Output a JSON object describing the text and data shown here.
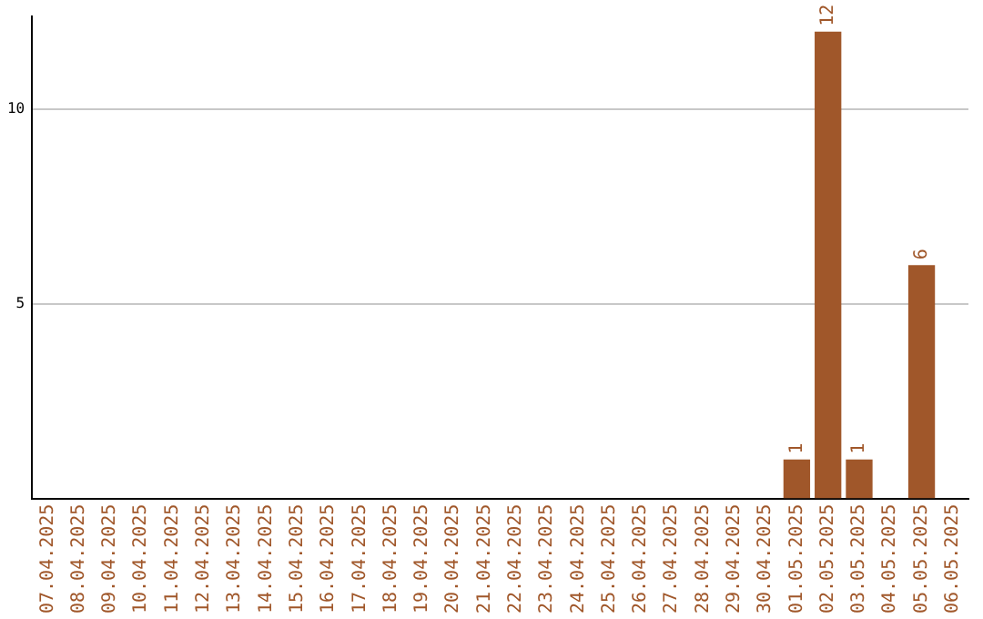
{
  "chart_data": {
    "type": "bar",
    "categories": [
      "07.04.2025",
      "08.04.2025",
      "09.04.2025",
      "10.04.2025",
      "11.04.2025",
      "12.04.2025",
      "13.04.2025",
      "14.04.2025",
      "15.04.2025",
      "16.04.2025",
      "17.04.2025",
      "18.04.2025",
      "19.04.2025",
      "20.04.2025",
      "21.04.2025",
      "22.04.2025",
      "23.04.2025",
      "24.04.2025",
      "25.04.2025",
      "26.04.2025",
      "27.04.2025",
      "28.04.2025",
      "29.04.2025",
      "30.04.2025",
      "01.05.2025",
      "02.05.2025",
      "03.05.2025",
      "04.05.2025",
      "05.05.2025",
      "06.05.2025"
    ],
    "values": [
      null,
      null,
      null,
      null,
      null,
      null,
      null,
      null,
      null,
      null,
      null,
      null,
      null,
      null,
      null,
      null,
      null,
      null,
      null,
      null,
      null,
      null,
      null,
      null,
      1,
      12,
      1,
      null,
      6,
      null
    ],
    "color": "#a0572a",
    "ylim": [
      0,
      12.4
    ],
    "yticks": [
      5,
      10
    ],
    "grid": "y",
    "data_labels": true,
    "legend": false
  }
}
